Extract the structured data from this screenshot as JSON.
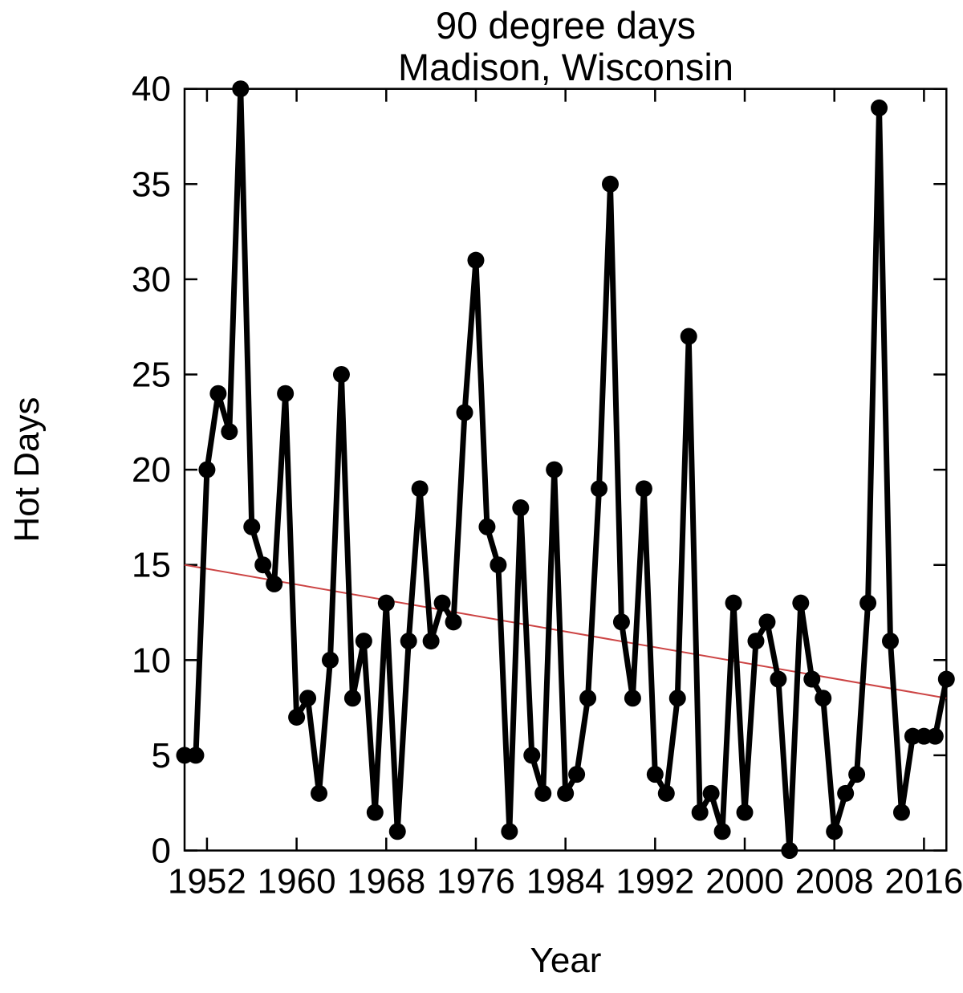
{
  "figure": {
    "title_line1": "90 degree days",
    "title_line2": "Madison, Wisconsin",
    "background_color": "#ffffff",
    "line_color": "#000000",
    "trend_color": "#cc4444"
  },
  "chart_data": {
    "type": "line",
    "title": "90 degree days",
    "subtitle": "Madison, Wisconsin",
    "xlabel": "Year",
    "ylabel": "Hot Days",
    "xlim": [
      1950,
      2018
    ],
    "ylim": [
      0,
      40
    ],
    "x_ticks": [
      1952,
      1960,
      1968,
      1976,
      1984,
      1992,
      2000,
      2008,
      2016
    ],
    "y_ticks": [
      0,
      5,
      10,
      15,
      20,
      25,
      30,
      35,
      40
    ],
    "grid": false,
    "legend": "none",
    "marker": "circle",
    "series": [
      {
        "name": "Hot Days",
        "color": "#000000",
        "x": [
          1950,
          1951,
          1952,
          1953,
          1954,
          1955,
          1956,
          1957,
          1958,
          1959,
          1960,
          1961,
          1962,
          1963,
          1964,
          1965,
          1966,
          1967,
          1968,
          1969,
          1970,
          1971,
          1972,
          1973,
          1974,
          1975,
          1976,
          1977,
          1978,
          1979,
          1980,
          1981,
          1982,
          1983,
          1984,
          1985,
          1986,
          1987,
          1988,
          1989,
          1990,
          1991,
          1992,
          1993,
          1994,
          1995,
          1996,
          1997,
          1998,
          1999,
          2000,
          2001,
          2002,
          2003,
          2004,
          2005,
          2006,
          2007,
          2008,
          2009,
          2010,
          2011,
          2012,
          2013,
          2014,
          2015,
          2016,
          2017,
          2018
        ],
        "values": [
          5,
          5,
          20,
          24,
          22,
          40,
          17,
          15,
          14,
          24,
          7,
          8,
          3,
          10,
          25,
          8,
          11,
          2,
          13,
          1,
          11,
          19,
          11,
          13,
          12,
          23,
          31,
          17,
          15,
          1,
          18,
          5,
          3,
          20,
          3,
          4,
          8,
          19,
          35,
          12,
          8,
          19,
          4,
          3,
          8,
          27,
          2,
          3,
          1,
          13,
          2,
          11,
          12,
          9,
          0,
          13,
          9,
          8,
          1,
          3,
          4,
          13,
          39,
          11,
          2,
          6,
          6,
          6,
          9
        ]
      }
    ],
    "trend_line": {
      "name": "linear trend",
      "color": "#cc4444",
      "points": [
        [
          1950,
          15
        ],
        [
          2018,
          8
        ]
      ]
    }
  }
}
